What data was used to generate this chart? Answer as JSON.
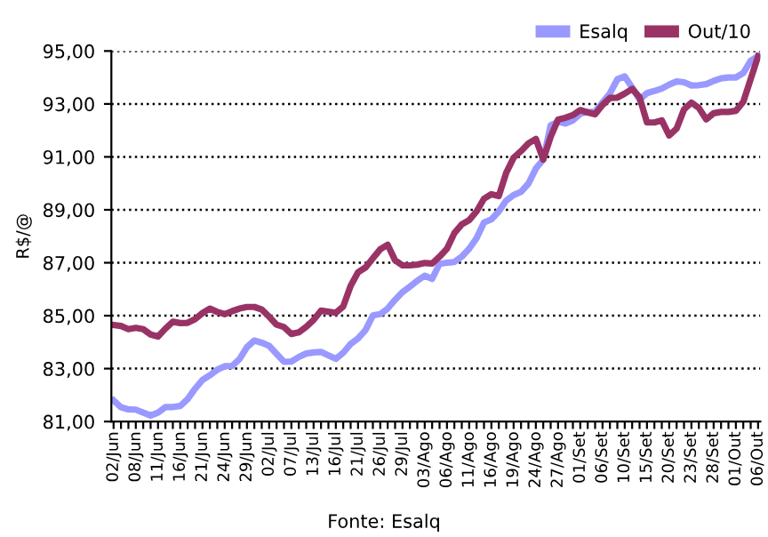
{
  "chart_data": {
    "type": "line",
    "ylabel": "R$/@",
    "categories": [
      "02/Jun",
      null,
      null,
      "08/Jun",
      null,
      null,
      "11/Jun",
      null,
      null,
      "16/Jun",
      null,
      null,
      "21/Jun",
      null,
      null,
      "24/Jun",
      null,
      null,
      "29/Jun",
      null,
      null,
      "02/Jul",
      null,
      null,
      "07/Jul",
      null,
      null,
      "13/Jul",
      null,
      null,
      "16/Jul",
      null,
      null,
      "21/Jul",
      null,
      null,
      "26/Jul",
      null,
      null,
      "29/Jul",
      null,
      null,
      "03/Ago",
      null,
      null,
      "06/Ago",
      null,
      null,
      "11/Ago",
      null,
      null,
      "16/Ago",
      null,
      null,
      "19/Ago",
      null,
      null,
      "24/Ago",
      null,
      null,
      "27/Ago",
      null,
      null,
      "01/Set",
      null,
      null,
      "06/Set",
      null,
      null,
      "10/Set",
      null,
      null,
      "15/Set",
      null,
      null,
      "20/Set",
      null,
      null,
      "23/Set",
      null,
      null,
      "28/Set",
      null,
      null,
      "01/Out",
      null,
      null,
      "06/Out"
    ],
    "series": [
      {
        "name": "Esalq",
        "color": "#9999ff",
        "values": [
          81.8,
          81.54,
          81.46,
          81.45,
          81.34,
          81.23,
          81.34,
          81.55,
          81.55,
          81.59,
          81.85,
          82.24,
          82.57,
          82.75,
          82.96,
          83.09,
          83.1,
          83.36,
          83.81,
          84.06,
          83.98,
          83.86,
          83.56,
          83.26,
          83.27,
          83.44,
          83.57,
          83.61,
          83.63,
          83.5,
          83.37,
          83.6,
          83.93,
          84.14,
          84.45,
          85.01,
          85.06,
          85.27,
          85.6,
          85.89,
          86.1,
          86.32,
          86.51,
          86.39,
          86.96,
          87.0,
          87.03,
          87.23,
          87.53,
          87.93,
          88.52,
          88.64,
          88.94,
          89.35,
          89.56,
          89.68,
          89.99,
          90.56,
          90.9,
          92.19,
          92.33,
          92.26,
          92.38,
          92.63,
          92.7,
          92.71,
          93.06,
          93.4,
          93.93,
          94.04,
          93.62,
          93.16,
          93.41,
          93.49,
          93.58,
          93.73,
          93.85,
          93.82,
          93.7,
          93.71,
          93.75,
          93.87,
          93.97,
          94.0,
          94.0,
          94.17,
          94.63,
          94.8
        ]
      },
      {
        "name": "Out/10",
        "color": "#993366",
        "values": [
          84.65,
          84.61,
          84.49,
          84.54,
          84.49,
          84.29,
          84.21,
          84.51,
          84.77,
          84.72,
          84.73,
          84.87,
          85.1,
          85.27,
          85.14,
          85.06,
          85.17,
          85.27,
          85.33,
          85.33,
          85.23,
          84.96,
          84.66,
          84.57,
          84.31,
          84.37,
          84.58,
          84.84,
          85.19,
          85.15,
          85.11,
          85.35,
          86.13,
          86.64,
          86.82,
          87.17,
          87.51,
          87.68,
          87.09,
          86.9,
          86.9,
          86.93,
          86.99,
          86.97,
          87.23,
          87.53,
          88.12,
          88.45,
          88.61,
          88.94,
          89.42,
          89.59,
          89.52,
          90.4,
          90.97,
          91.22,
          91.51,
          91.68,
          90.9,
          91.76,
          92.41,
          92.48,
          92.58,
          92.77,
          92.68,
          92.61,
          92.96,
          93.23,
          93.24,
          93.39,
          93.57,
          93.25,
          92.3,
          92.3,
          92.38,
          91.81,
          92.07,
          92.79,
          93.05,
          92.85,
          92.42,
          92.65,
          92.7,
          92.7,
          92.74,
          93.08,
          93.94,
          94.8
        ]
      }
    ],
    "ylim": [
      81,
      95
    ],
    "yticks": [
      {
        "value": 81,
        "label": "81,00"
      },
      {
        "value": 83,
        "label": "83,00"
      },
      {
        "value": 85,
        "label": "85,00"
      },
      {
        "value": 87,
        "label": "87,00"
      },
      {
        "value": 89,
        "label": "89,00"
      },
      {
        "value": 91,
        "label": "91,00"
      },
      {
        "value": 93,
        "label": "93,00"
      },
      {
        "value": 95,
        "label": "95,00"
      }
    ],
    "grid": "y",
    "legend": "top right",
    "line_style": "solid",
    "marker": "none",
    "annotations": [
      "Fonte: Esalq"
    ]
  }
}
